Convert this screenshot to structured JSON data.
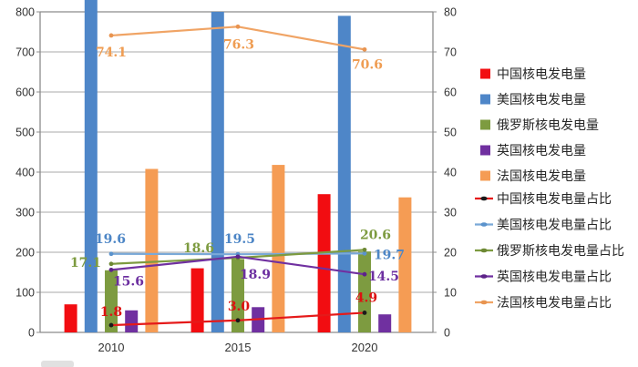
{
  "chart_data": {
    "type": "bar+line-combo",
    "title": "",
    "categories": [
      "2010",
      "2015",
      "2020"
    ],
    "left_axis": {
      "min": 0,
      "max": 800,
      "step": 100,
      "tick_labels": [
        "0",
        "100",
        "200",
        "300",
        "400",
        "500",
        "600",
        "700",
        "800"
      ]
    },
    "right_axis": {
      "min": 0,
      "max": 80,
      "step": 10,
      "tick_labels": [
        "0",
        "10",
        "20",
        "30",
        "40",
        "50",
        "60",
        "70",
        "80"
      ]
    },
    "grid": "horizontal",
    "legend_position": "right",
    "bar_series": [
      {
        "id": "china",
        "name": "中国核电发电量",
        "color": "#f20d11",
        "values": [
          70,
          160,
          345
        ]
      },
      {
        "id": "usa",
        "name": "美国核电发电量",
        "color": "#4e86c8",
        "values": [
          830,
          800,
          790
        ]
      },
      {
        "id": "russia",
        "name": "俄罗斯核电发电量",
        "color": "#7d9b40",
        "values": [
          155,
          183,
          202
        ]
      },
      {
        "id": "uk",
        "name": "英国核电发电量",
        "color": "#7030a0",
        "values": [
          55,
          63,
          45
        ]
      },
      {
        "id": "france",
        "name": "法国核电发电量",
        "color": "#f59c54",
        "values": [
          408,
          418,
          337
        ]
      }
    ],
    "line_series": [
      {
        "id": "china-ratio",
        "name": "中国核电发电量占比",
        "color": "#e51a1a",
        "marker_color": "#1a1a1a",
        "label_color": "#dd1111",
        "values": [
          1.8,
          3.0,
          4.9
        ],
        "labels": [
          "1.8",
          "3.0",
          "4.9"
        ]
      },
      {
        "id": "usa-ratio",
        "name": "美国核电发电量占比",
        "color": "#7aa9d8",
        "marker_color": "#5b93cc",
        "label_color": "#4d86c6",
        "values": [
          19.6,
          19.5,
          19.7
        ],
        "labels": [
          "19.6",
          "19.5",
          "19.7"
        ]
      },
      {
        "id": "russia-ratio",
        "name": "俄罗斯核电发电量占比",
        "color": "#7d9b40",
        "marker_color": "#6d8834",
        "label_color": "#7d9b40",
        "values": [
          17.1,
          18.6,
          20.6
        ],
        "labels": [
          "17.1",
          "18.6",
          "20.6"
        ]
      },
      {
        "id": "uk-ratio",
        "name": "英国核电发电量占比",
        "color": "#7030a0",
        "marker_color": "#5c2388",
        "label_color": "#6c2fa0",
        "values": [
          15.6,
          18.9,
          14.5
        ],
        "labels": [
          "15.6",
          "18.9",
          "14.5"
        ]
      },
      {
        "id": "france-ratio",
        "name": "法国核电发电量占比",
        "color": "#f0a465",
        "marker_color": "#e89450",
        "label_color": "#ef9d53",
        "values": [
          74.1,
          76.3,
          70.6
        ],
        "labels": [
          "74.1",
          "76.3",
          "70.6"
        ]
      }
    ]
  }
}
